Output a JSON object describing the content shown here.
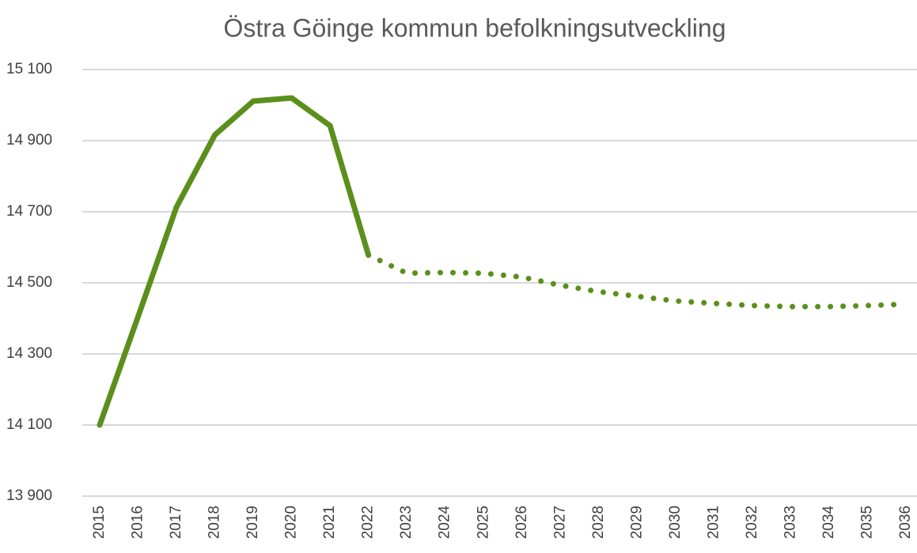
{
  "chart_data": {
    "type": "line",
    "title": "Östra Göinge kommun befolkningsutveckling",
    "categories": [
      "2015",
      "2016",
      "2017",
      "2018",
      "2019",
      "2020",
      "2021",
      "2022",
      "2023",
      "2024",
      "2025",
      "2026",
      "2027",
      "2028",
      "2029",
      "2030",
      "2031",
      "2032",
      "2033",
      "2034",
      "2035",
      "2036"
    ],
    "series": [
      {
        "color": "#5b8f1c",
        "line_style": "solid",
        "values": [
          14100,
          14405,
          14713,
          14916,
          15011,
          15020,
          14942,
          14578,
          null,
          null,
          null,
          null,
          null,
          null,
          null,
          null,
          null,
          null,
          null,
          null,
          null,
          null
        ]
      },
      {
        "color": "#5b8f1c",
        "line_style": "dotted",
        "values": [
          null,
          null,
          null,
          null,
          null,
          null,
          null,
          14578,
          14527,
          14529,
          14527,
          14516,
          14493,
          14475,
          14462,
          14449,
          14442,
          14436,
          14433,
          14433,
          14436,
          14440
        ]
      }
    ],
    "ylim": [
      13900,
      15100
    ],
    "yticks": [
      {
        "value": 13900,
        "label": "13 900"
      },
      {
        "value": 14100,
        "label": "14 100"
      },
      {
        "value": 14300,
        "label": "14 300"
      },
      {
        "value": 14500,
        "label": "14 500"
      },
      {
        "value": 14700,
        "label": "14 700"
      },
      {
        "value": 14900,
        "label": "14 900"
      },
      {
        "value": 15100,
        "label": "15 100"
      }
    ],
    "grid": true
  }
}
